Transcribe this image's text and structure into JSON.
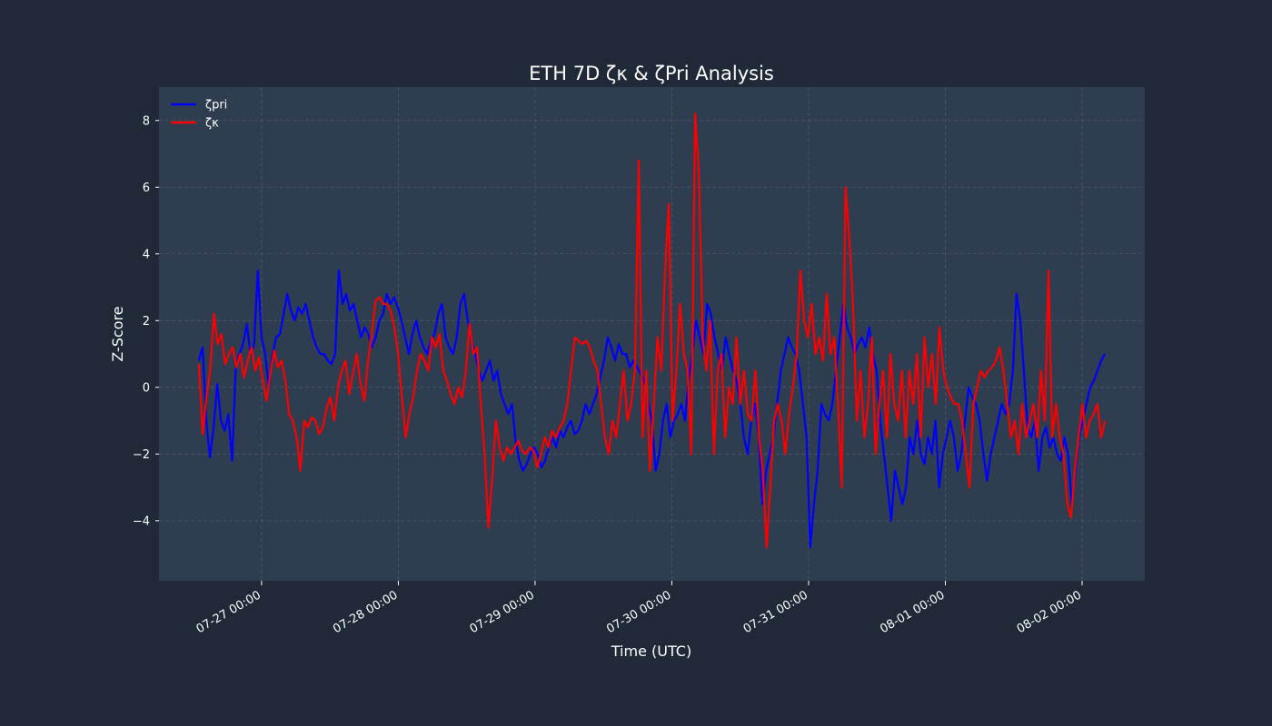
{
  "chart_data": {
    "type": "line",
    "title": "ETH 7D ζκ & ζPri Analysis",
    "xlabel": "Time (UTC)",
    "ylabel": "Z-Score",
    "x_start": "07-26 13:00",
    "x_end": "08-02 04:00",
    "xlim": [
      "07-26 06:00",
      "08-02 11:00"
    ],
    "ylim": [
      -5.8,
      9.0
    ],
    "x_ticks": [
      "07-27 00:00",
      "07-28 00:00",
      "07-29 00:00",
      "07-30 00:00",
      "07-31 00:00",
      "08-01 00:00",
      "08-02 00:00"
    ],
    "y_ticks": [
      8,
      6,
      4,
      2,
      0,
      -2,
      -4
    ],
    "y_tick_labels": [
      "8",
      "6",
      "4",
      "2",
      "0",
      "−2",
      "−4"
    ],
    "grid": true,
    "legend_position": "top-left",
    "series": [
      {
        "name": "ζpri",
        "color": "#0000ff",
        "values": [
          0.8,
          1.2,
          -1.0,
          -2.1,
          -1.2,
          0.1,
          -1.0,
          -1.3,
          -0.8,
          -2.2,
          0.5,
          1.0,
          1.3,
          1.9,
          1.0,
          1.3,
          3.5,
          1.5,
          1.0,
          0.0,
          1.0,
          1.5,
          1.6,
          2.2,
          2.8,
          2.3,
          2.0,
          2.4,
          2.2,
          2.5,
          2.0,
          1.5,
          1.2,
          1.0,
          1.0,
          0.8,
          0.7,
          1.0,
          3.5,
          2.5,
          2.8,
          2.3,
          2.5,
          2.0,
          1.5,
          1.8,
          1.6,
          1.2,
          1.5,
          2.0,
          2.2,
          2.8,
          2.5,
          2.7,
          2.4,
          2.0,
          1.5,
          1.0,
          1.6,
          2.0,
          1.5,
          1.2,
          1.0,
          1.4,
          1.6,
          2.2,
          2.5,
          1.5,
          1.2,
          1.0,
          1.5,
          2.5,
          2.8,
          2.0,
          1.4,
          1.0,
          0.5,
          0.2,
          0.5,
          0.8,
          0.2,
          0.5,
          -0.2,
          -0.5,
          -0.8,
          -0.5,
          -1.6,
          -2.2,
          -2.5,
          -2.3,
          -2.0,
          -1.8,
          -2.0,
          -2.4,
          -2.2,
          -1.8,
          -1.5,
          -1.8,
          -1.3,
          -1.5,
          -1.2,
          -1.0,
          -1.4,
          -1.3,
          -1.0,
          -0.5,
          -0.8,
          -0.5,
          -0.2,
          0.3,
          0.8,
          1.5,
          1.2,
          0.8,
          1.3,
          1.0,
          1.0,
          0.6,
          0.8,
          0.6,
          0.4,
          0.2,
          -0.5,
          -1.0,
          -2.5,
          -2.0,
          -1.0,
          -0.5,
          -1.5,
          -1.0,
          -0.8,
          -0.5,
          -1.0,
          0.3,
          1.0,
          2.0,
          1.5,
          1.0,
          2.5,
          2.2,
          1.5,
          1.0,
          0.5,
          1.5,
          1.0,
          0.5,
          0.2,
          -0.5,
          -1.5,
          -2.0,
          -1.0,
          -0.5,
          -1.5,
          -3.5,
          -2.5,
          -2.0,
          -1.5,
          -0.5,
          0.5,
          1.0,
          1.5,
          1.2,
          1.0,
          0.5,
          -0.5,
          -1.5,
          -4.8,
          -3.5,
          -2.5,
          -0.5,
          -0.8,
          -1.0,
          -0.5,
          0.5,
          1.5,
          2.5,
          1.8,
          1.5,
          1.0,
          1.3,
          1.5,
          1.2,
          1.8,
          1.0,
          0.5,
          -1.0,
          -2.0,
          -3.0,
          -4.0,
          -2.5,
          -3.0,
          -3.5,
          -3.0,
          -1.5,
          -2.0,
          -1.0,
          -2.0,
          -2.3,
          -1.5,
          -2.0,
          -1.0,
          -3.0,
          -2.0,
          -1.5,
          -1.0,
          -1.5,
          -2.5,
          -2.0,
          -1.0,
          0.0,
          -0.3,
          -0.5,
          -1.0,
          -2.0,
          -2.8,
          -2.0,
          -1.5,
          -1.0,
          -0.5,
          -0.8,
          -0.5,
          0.5,
          2.8,
          2.0,
          0.5,
          -1.2,
          -1.5,
          -1.0,
          -2.5,
          -1.5,
          -1.2,
          -1.8,
          -1.5,
          -2.0,
          -2.2,
          -1.5,
          -2.0,
          -3.5,
          -2.5,
          -1.5,
          -1.0,
          -0.5,
          0.0,
          0.2,
          0.5,
          0.8,
          1.0
        ]
      },
      {
        "name": "ζκ",
        "color": "#ff0000",
        "values": [
          0.7,
          -1.4,
          -0.3,
          0.5,
          2.2,
          1.3,
          1.6,
          0.7,
          1.0,
          1.2,
          0.6,
          1.0,
          0.3,
          0.8,
          1.2,
          0.5,
          0.9,
          0.2,
          -0.4,
          0.4,
          1.1,
          0.6,
          0.8,
          0.2,
          -0.8,
          -1.0,
          -1.5,
          -2.5,
          -1.0,
          -1.2,
          -0.9,
          -1.0,
          -1.4,
          -1.2,
          -0.6,
          -0.3,
          -1.0,
          0.0,
          0.5,
          0.8,
          -0.2,
          0.4,
          1.0,
          0.1,
          -0.4,
          0.8,
          1.6,
          2.6,
          2.7,
          2.5,
          2.5,
          2.3,
          1.8,
          1.0,
          -0.3,
          -1.5,
          -0.8,
          -0.3,
          0.5,
          1.0,
          0.8,
          0.5,
          1.5,
          1.2,
          1.6,
          0.5,
          0.2,
          -0.2,
          -0.5,
          0.0,
          -0.3,
          0.5,
          1.9,
          1.0,
          1.2,
          -0.5,
          -2.0,
          -4.2,
          -2.8,
          -1.0,
          -1.8,
          -2.2,
          -1.8,
          -2.0,
          -1.8,
          -1.6,
          -1.9,
          -2.0,
          -1.8,
          -1.9,
          -2.4,
          -2.0,
          -1.5,
          -1.8,
          -1.3,
          -1.5,
          -1.2,
          -1.0,
          -0.5,
          0.5,
          1.5,
          1.4,
          1.3,
          1.4,
          1.2,
          0.8,
          0.5,
          -0.5,
          -1.5,
          -2.0,
          -1.0,
          -1.5,
          -0.5,
          0.5,
          -1.0,
          -0.5,
          0.5,
          6.8,
          -1.5,
          0.5,
          -2.5,
          -0.5,
          1.5,
          0.5,
          3.5,
          5.5,
          -1.0,
          0.5,
          2.5,
          1.0,
          0.5,
          -2.0,
          8.2,
          6.4,
          1.5,
          0.5,
          2.0,
          -2.0,
          0.5,
          1.0,
          -1.5,
          0.0,
          -0.5,
          1.5,
          -0.5,
          0.5,
          -0.8,
          -1.0,
          0.5,
          -1.5,
          -2.5,
          -4.8,
          -3.0,
          -1.0,
          -0.5,
          -1.0,
          -2.0,
          -0.8,
          0.0,
          1.0,
          3.5,
          2.0,
          1.5,
          2.5,
          1.0,
          1.5,
          0.8,
          2.8,
          1.0,
          1.5,
          -0.5,
          -3.0,
          6.0,
          4.5,
          2.5,
          -1.0,
          0.5,
          -1.5,
          -0.5,
          1.5,
          -2.0,
          -0.5,
          0.5,
          -1.5,
          1.0,
          -0.5,
          -1.0,
          0.5,
          -1.5,
          0.5,
          -0.5,
          1.0,
          -1.5,
          1.5,
          0.0,
          1.0,
          -0.5,
          1.8,
          0.5,
          0.0,
          -0.3,
          -0.5,
          -0.5,
          -1.0,
          -2.0,
          -3.0,
          -0.5,
          0.0,
          0.5,
          0.3,
          0.5,
          0.6,
          0.8,
          1.2,
          0.5,
          -0.5,
          -1.5,
          -1.0,
          -2.0,
          -0.5,
          -1.5,
          -1.0,
          -0.5,
          -1.5,
          0.5,
          -1.0,
          3.5,
          -1.5,
          -0.5,
          -1.5,
          -2.0,
          -3.5,
          -3.9,
          -2.5,
          -1.5,
          -0.5,
          -1.5,
          -1.0,
          -0.8,
          -0.5,
          -1.5,
          -1.0
        ]
      }
    ]
  }
}
